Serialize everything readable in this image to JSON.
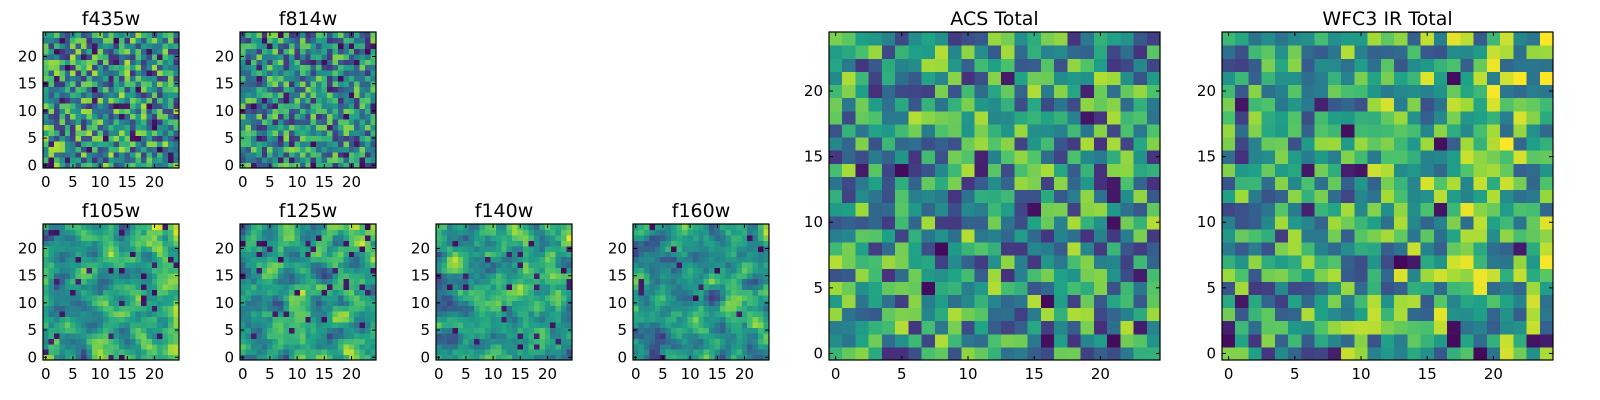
{
  "colormap": {
    "name": "viridis",
    "stops": [
      "#440154",
      "#46327e",
      "#365c8d",
      "#277f8e",
      "#1fa187",
      "#4ac16d",
      "#a0da39",
      "#fde725"
    ]
  },
  "chart_data": [
    {
      "type": "heatmap",
      "title": "f435w",
      "grid": [
        25,
        25
      ],
      "xticks": [
        0,
        5,
        10,
        15,
        20
      ],
      "yticks": [
        0,
        5,
        10,
        15,
        20
      ],
      "seed": 11,
      "smooth": 0,
      "bias": 0.62,
      "gradient": 0.0,
      "dark": 0.06
    },
    {
      "type": "heatmap",
      "title": "f814w",
      "grid": [
        25,
        25
      ],
      "xticks": [
        0,
        5,
        10,
        15,
        20
      ],
      "yticks": [
        0,
        5,
        10,
        15,
        20
      ],
      "seed": 23,
      "smooth": 0,
      "bias": 0.5,
      "gradient": 0.0,
      "dark": 0.06
    },
    {
      "type": "heatmap",
      "title": "f105w",
      "grid": [
        25,
        25
      ],
      "xticks": [
        0,
        5,
        10,
        15,
        20
      ],
      "yticks": [
        0,
        5,
        10,
        15,
        20
      ],
      "seed": 37,
      "smooth": 1,
      "bias": 0.55,
      "gradient": 0.15,
      "dark": 0.04
    },
    {
      "type": "heatmap",
      "title": "f125w",
      "grid": [
        25,
        25
      ],
      "xticks": [
        0,
        5,
        10,
        15,
        20
      ],
      "yticks": [
        0,
        5,
        10,
        15,
        20
      ],
      "seed": 41,
      "smooth": 1,
      "bias": 0.58,
      "gradient": 0.1,
      "dark": 0.04
    },
    {
      "type": "heatmap",
      "title": "f140w",
      "grid": [
        25,
        25
      ],
      "xticks": [
        0,
        5,
        10,
        15,
        20
      ],
      "yticks": [
        0,
        5,
        10,
        15,
        20
      ],
      "seed": 53,
      "smooth": 1,
      "bias": 0.64,
      "gradient": 0.1,
      "dark": 0.04
    },
    {
      "type": "heatmap",
      "title": "f160w",
      "grid": [
        25,
        25
      ],
      "xticks": [
        0,
        5,
        10,
        15,
        20
      ],
      "yticks": [
        0,
        5,
        10,
        15,
        20
      ],
      "seed": 67,
      "smooth": 1,
      "bias": 0.48,
      "gradient": 0.1,
      "dark": 0.05
    },
    {
      "type": "heatmap",
      "title": "ACS Total",
      "grid": [
        25,
        25
      ],
      "xticks": [
        0,
        5,
        10,
        15,
        20
      ],
      "yticks": [
        0,
        5,
        10,
        15,
        20
      ],
      "seed": 79,
      "smooth": 0,
      "bias": 0.62,
      "gradient": 0.0,
      "dark": 0.03
    },
    {
      "type": "heatmap",
      "title": "WFC3 IR Total",
      "grid": [
        25,
        25
      ],
      "xticks": [
        0,
        5,
        10,
        15,
        20
      ],
      "yticks": [
        0,
        5,
        10,
        15,
        20
      ],
      "seed": 97,
      "smooth": 0,
      "bias": 0.55,
      "gradient": 0.18,
      "dark": 0.04
    }
  ]
}
